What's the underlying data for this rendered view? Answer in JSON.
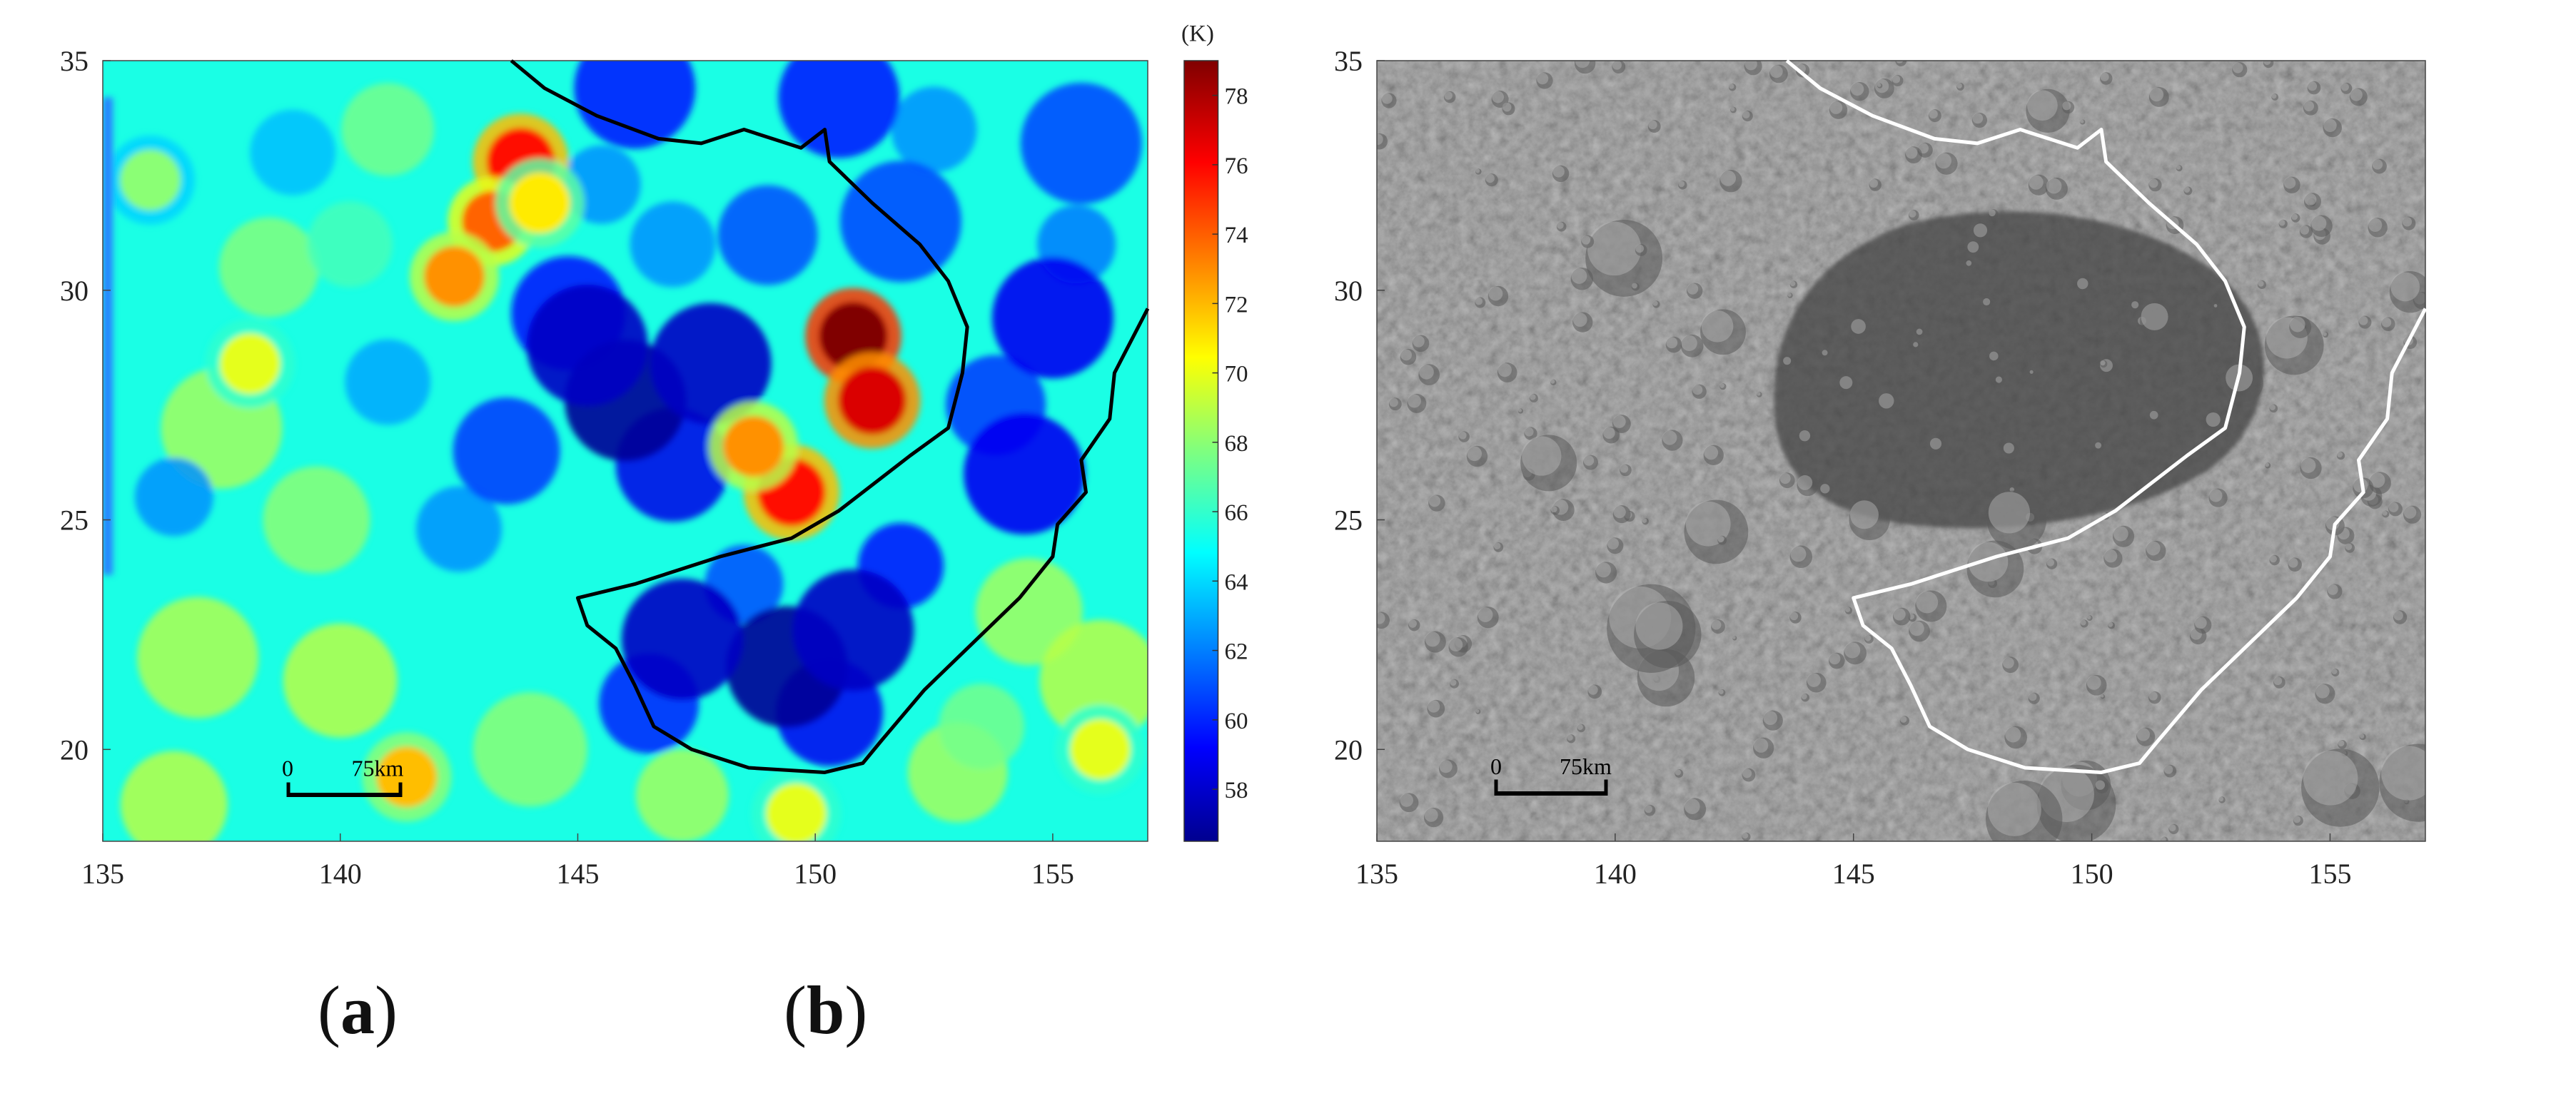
{
  "chart_data": [
    {
      "type": "heatmap",
      "panel": "a",
      "caption_open": "(",
      "caption_letter": "a",
      "caption_close": ")",
      "xlim": [
        135,
        157
      ],
      "ylim": [
        18,
        35
      ],
      "xticks": [
        "135",
        "140",
        "145",
        "150",
        "155"
      ],
      "yticks": [
        "20",
        "25",
        "30",
        "35"
      ],
      "colorbar": {
        "unit": "(K)",
        "range": [
          56.5,
          79
        ],
        "ticks": [
          "58",
          "60",
          "62",
          "64",
          "66",
          "68",
          "70",
          "72",
          "74",
          "76",
          "78"
        ],
        "colormap": "jet"
      },
      "scale_bar": {
        "start_label": "0",
        "end_label": "75km"
      },
      "boundary_color": "#000000",
      "hot_spots": [
        {
          "x": 150.8,
          "y": 29.0,
          "value": 79
        },
        {
          "x": 151.2,
          "y": 27.6,
          "value": 77
        },
        {
          "x": 149.5,
          "y": 25.6,
          "value": 76
        },
        {
          "x": 148.7,
          "y": 26.6,
          "value": 73
        },
        {
          "x": 143.8,
          "y": 32.8,
          "value": 76
        },
        {
          "x": 143.2,
          "y": 31.5,
          "value": 74
        },
        {
          "x": 142.4,
          "y": 30.3,
          "value": 73
        },
        {
          "x": 144.2,
          "y": 31.9,
          "value": 71
        },
        {
          "x": 138.1,
          "y": 28.4,
          "value": 70
        },
        {
          "x": 141.4,
          "y": 19.4,
          "value": 72
        },
        {
          "x": 149.6,
          "y": 18.6,
          "value": 70
        },
        {
          "x": 156.0,
          "y": 20.0,
          "value": 70
        },
        {
          "x": 136.0,
          "y": 32.4,
          "value": 68
        }
      ],
      "cold_spots": [
        {
          "x": 146.0,
          "y": 27.6,
          "value": 57
        },
        {
          "x": 145.2,
          "y": 28.8,
          "value": 58
        },
        {
          "x": 147.8,
          "y": 28.4,
          "value": 58
        },
        {
          "x": 149.4,
          "y": 21.8,
          "value": 57
        },
        {
          "x": 147.2,
          "y": 22.4,
          "value": 58
        },
        {
          "x": 150.8,
          "y": 22.6,
          "value": 58
        },
        {
          "x": 155.0,
          "y": 29.4,
          "value": 59
        },
        {
          "x": 154.4,
          "y": 26.0,
          "value": 59
        },
        {
          "x": 146.2,
          "y": 34.4,
          "value": 60
        },
        {
          "x": 150.5,
          "y": 34.2,
          "value": 60
        },
        {
          "x": 155.6,
          "y": 33.2,
          "value": 61
        },
        {
          "x": 151.8,
          "y": 31.5,
          "value": 61
        }
      ],
      "background_value": 65.5
    },
    {
      "type": "image",
      "panel": "b",
      "caption_open": "(",
      "caption_letter": "b",
      "caption_close": ")",
      "xlim": [
        135,
        157
      ],
      "ylim": [
        18,
        35
      ],
      "xticks": [
        "135",
        "140",
        "145",
        "150",
        "155"
      ],
      "yticks": [
        "20",
        "25",
        "30",
        "35"
      ],
      "scale_bar": {
        "start_label": "0",
        "end_label": "75km"
      },
      "boundary_color": "#ffffff"
    }
  ],
  "boundary_outline": [
    [
      143.6,
      35.0
    ],
    [
      144.3,
      34.4
    ],
    [
      145.4,
      33.8
    ],
    [
      146.7,
      33.3
    ],
    [
      147.6,
      33.2
    ],
    [
      148.5,
      33.5
    ],
    [
      149.7,
      33.1
    ],
    [
      150.2,
      33.5
    ],
    [
      150.3,
      32.8
    ],
    [
      151.2,
      31.9
    ],
    [
      152.2,
      31.0
    ],
    [
      152.8,
      30.2
    ],
    [
      153.2,
      29.2
    ],
    [
      153.1,
      28.2
    ],
    [
      152.8,
      27.0
    ],
    [
      152.0,
      26.4
    ],
    [
      150.5,
      25.2
    ],
    [
      149.5,
      24.6
    ],
    [
      148.0,
      24.2
    ],
    [
      146.2,
      23.6
    ],
    [
      145.0,
      23.3
    ],
    [
      145.2,
      22.7
    ],
    [
      145.8,
      22.2
    ],
    [
      146.2,
      21.4
    ],
    [
      146.6,
      20.5
    ],
    [
      147.4,
      20.0
    ],
    [
      148.6,
      19.6
    ],
    [
      150.2,
      19.5
    ],
    [
      151.0,
      19.7
    ],
    [
      151.4,
      20.2
    ],
    [
      152.3,
      21.3
    ],
    [
      153.2,
      22.2
    ],
    [
      154.3,
      23.3
    ],
    [
      155.0,
      24.2
    ],
    [
      155.1,
      24.9
    ],
    [
      155.7,
      25.6
    ],
    [
      155.6,
      26.3
    ],
    [
      156.2,
      27.2
    ],
    [
      156.3,
      28.2
    ],
    [
      156.8,
      29.2
    ],
    [
      157.0,
      29.6
    ]
  ]
}
